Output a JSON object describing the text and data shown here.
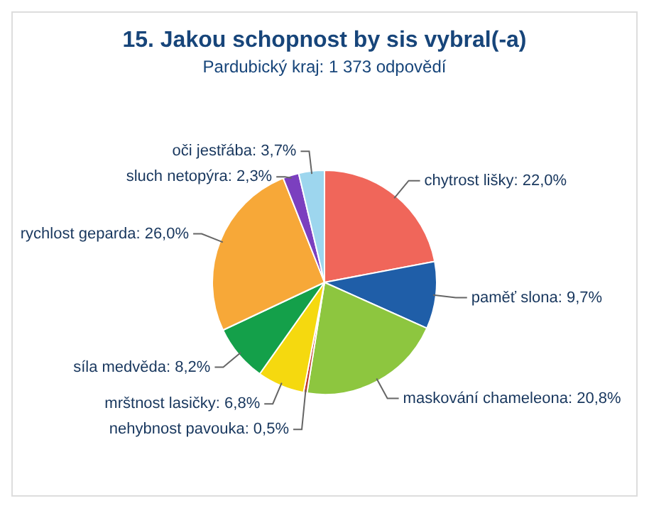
{
  "chart_data": {
    "type": "pie",
    "title": "15. Jakou schopnost by sis vybral(-a)",
    "subtitle": "Pardubický kraj: 1 373 odpovědí",
    "categories": [
      "chytrost lišky",
      "paměť slona",
      "maskování chameleona",
      "nehybnost pavouka",
      "mrštnost lasičky",
      "síla medvěda",
      "rychlost geparda",
      "sluch netopýra",
      "oči jestřába"
    ],
    "values": [
      22.0,
      9.7,
      20.8,
      0.5,
      6.8,
      8.2,
      26.0,
      2.3,
      3.7
    ],
    "value_labels": [
      "22,0%",
      "9,7%",
      "20,8%",
      "0,5%",
      "6,8%",
      "8,2%",
      "26,0%",
      "2,3%",
      "3,7%"
    ],
    "colors": [
      "#f0665a",
      "#1f5ea8",
      "#8dc63f",
      "#c0392b",
      "#f5d90f",
      "#14a04a",
      "#f7a838",
      "#7b3fbf",
      "#9dd6ee"
    ],
    "legend": false
  }
}
